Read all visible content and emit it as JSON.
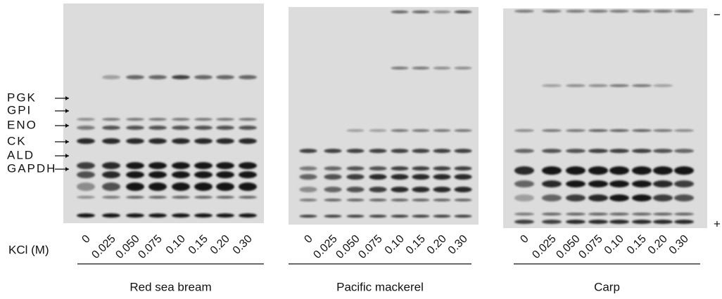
{
  "proteins": [
    "PGK",
    "GPI",
    "ENO",
    "CK",
    "ALD",
    "GAPDH"
  ],
  "axis_label": "KCl (M)",
  "lanes": [
    "0",
    "0.025",
    "0.050",
    "0.075",
    "0.10",
    "0.15",
    "0.20",
    "0.30"
  ],
  "panels": [
    "Red sea bream",
    "Pacific mackerel",
    "Carp"
  ],
  "electrodes": [
    "−",
    "+"
  ]
}
